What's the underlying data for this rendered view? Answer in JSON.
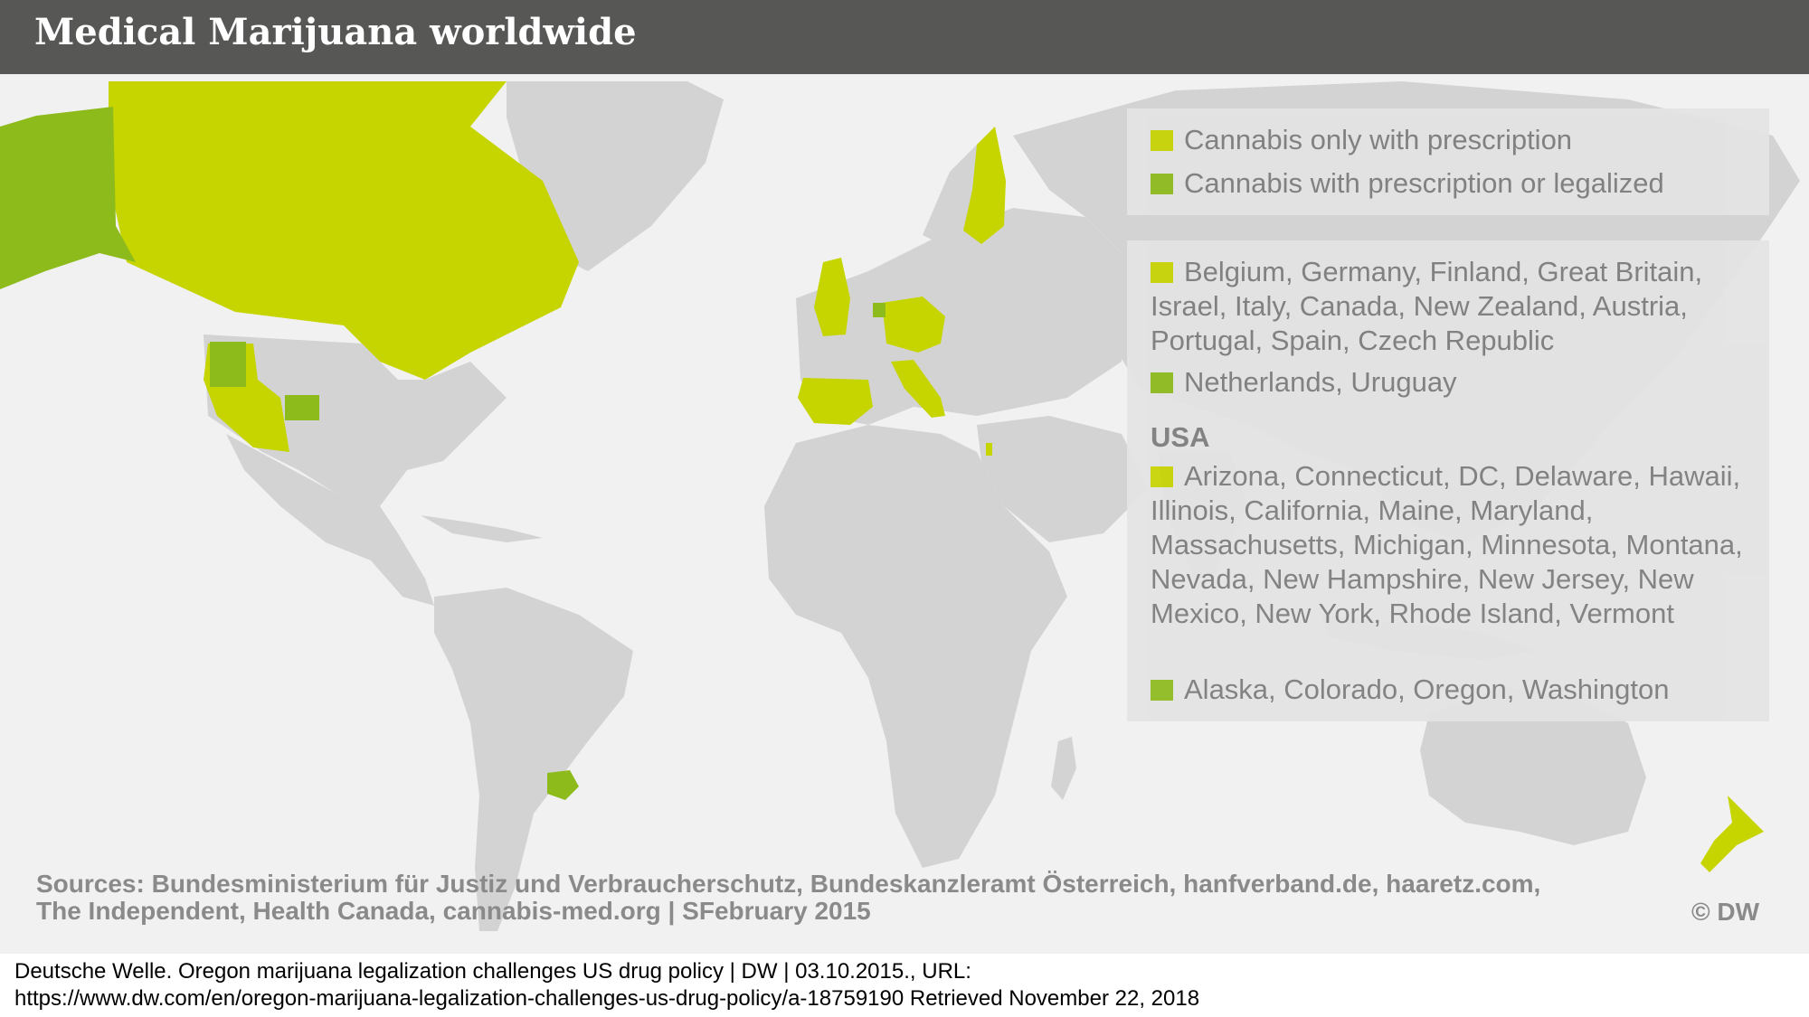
{
  "title": "Medical Marijuana worldwide",
  "legend": {
    "categories": [
      {
        "label": "Cannabis only with prescription",
        "color": "#c6d400"
      },
      {
        "label": "Cannabis with prescription or legalized",
        "color": "#8dbb1c"
      }
    ]
  },
  "countries": {
    "prescription_text": "Belgium, Germany, Finland, Great Britain, Israel, Italy, Canada, New Zealand, Austria, Portugal, Spain, Czech Republic",
    "legalized_text": "Netherlands, Uruguay"
  },
  "usa": {
    "heading": "USA",
    "prescription_text": "Arizona, Connecticut, DC, Delaware, Hawaii, Illinois, California, Maine, Maryland, Massachusetts, Michigan, Minnesota, Montana, Nevada, New Hampshire, New Jersey, New Mexico, New York, Rhode Island, Vermont",
    "legalized_text": "Alaska, Colorado, Oregon, Washington"
  },
  "sources": "Sources: Bundesministerium für Justiz und Verbraucherschutz, Bundeskanzleramt Österreich, hanfverband.de, haaretz.com, The Independent, Health Canada, cannabis-med.org | SFebruary 2015",
  "copyright": "© DW",
  "citation": {
    "line1": "Deutsche Welle.  Oregon marijuana legalization challenges US drug policy | DW | 03.10.2015., URL:",
    "line2": "https://www.dw.com/en/oregon-marijuana-legalization-challenges-us-drug-policy/a-18759190 Retrieved November 22, 2018"
  },
  "colors": {
    "land": "#d3d3d3",
    "water": "#f1f1f2",
    "prescription": "#c6d400",
    "legalized": "#8dbb1c"
  }
}
